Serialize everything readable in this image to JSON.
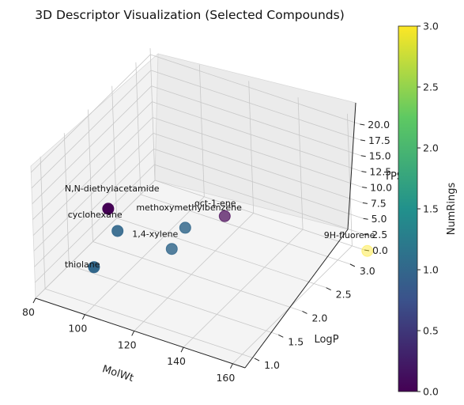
{
  "chart_data": {
    "type": "scatter",
    "projection": "3d",
    "title": "3D Descriptor Visualization (Selected Compounds)",
    "xlabel": "MolWt",
    "ylabel": "LogP",
    "zlabel": "TPSA",
    "colorbar_label": "NumRings",
    "colormap": "viridis",
    "grid": true,
    "xlim": [
      80,
      165
    ],
    "ylim": [
      0.8,
      3.3
    ],
    "zlim": [
      0,
      21
    ],
    "clim": [
      0,
      3
    ],
    "xticks": [
      "80",
      "100",
      "120",
      "140",
      "160"
    ],
    "yticks": [
      "1.0",
      "1.5",
      "2.0",
      "2.5",
      "3.0"
    ],
    "zticks": [
      "0.0",
      "2.5",
      "5.0",
      "7.5",
      "10.0",
      "12.5",
      "15.0",
      "17.5",
      "20.0"
    ],
    "cticks": [
      "0.0",
      "0.5",
      "1.0",
      "1.5",
      "2.0",
      "2.5",
      "3.0"
    ],
    "points": [
      {
        "label": "N,N-diethylacetamide",
        "molwt": 115.2,
        "logp": 0.6,
        "tpsa": 20.3,
        "numrings": 0
      },
      {
        "label": "methoxymethylbenzene",
        "molwt": 122.2,
        "logp": 1.8,
        "tpsa": 9.2,
        "numrings": 1
      },
      {
        "label": "cyclohexane",
        "molwt": 84.2,
        "logp": 2.3,
        "tpsa": 0,
        "numrings": 1
      },
      {
        "label": "oct-1-ene",
        "molwt": 112.2,
        "logp": 3.1,
        "tpsa": 0,
        "numrings": 0
      },
      {
        "label": "1,4-xylene",
        "molwt": 106.2,
        "logp": 2.3,
        "tpsa": 0,
        "numrings": 1
      },
      {
        "label": "thiolane",
        "molwt": 88.2,
        "logp": 1.6,
        "tpsa": 0,
        "numrings": 1
      },
      {
        "label": "9H-fluorene",
        "molwt": 166.2,
        "logp": 3.3,
        "tpsa": 0,
        "numrings": 3
      }
    ]
  }
}
